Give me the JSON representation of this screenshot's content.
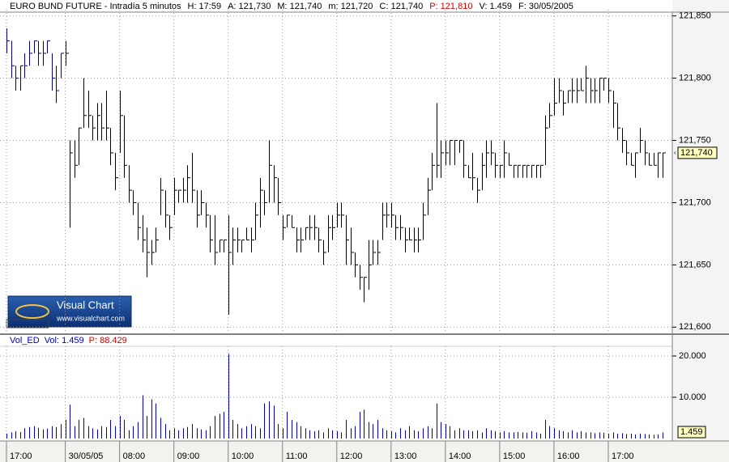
{
  "header": {
    "title": "EURO BUND FUTURE - Intradía 5 minutos",
    "fields": [
      "H: 17:59",
      "A: 121,730",
      "M: 121,740",
      "m: 121,720",
      "C: 121,740",
      "P: 121,810",
      "V: 1.459",
      "F: 30/05/2005"
    ]
  },
  "logo": {
    "title": "Visual Chart",
    "url": "www.visualchart.com"
  },
  "chart_data": [
    {
      "type": "hlc",
      "colors": {
        "previous": "#00008b",
        "current": "#000000"
      },
      "grid": true,
      "ylim": [
        121.595,
        121.855
      ],
      "yticks": [
        {
          "value": 121.6,
          "label": "121,600"
        },
        {
          "value": 121.65,
          "label": "121,650"
        },
        {
          "value": 121.7,
          "label": "121,700"
        },
        {
          "value": 121.75,
          "label": "121,750"
        },
        {
          "value": 121.8,
          "label": "121,800"
        },
        {
          "value": 121.85,
          "label": "121,850"
        }
      ],
      "last_value_label": "121,740",
      "high": [
        121.84,
        121.83,
        121.81,
        121.81,
        121.82,
        121.83,
        121.83,
        121.83,
        121.83,
        121.83,
        121.82,
        121.81,
        121.82,
        121.83,
        121.75,
        121.75,
        121.76,
        121.8,
        121.79,
        121.77,
        121.78,
        121.78,
        121.79,
        121.76,
        121.74,
        121.79,
        121.77,
        121.73,
        121.71,
        121.7,
        121.69,
        121.68,
        121.67,
        121.68,
        121.72,
        121.71,
        121.69,
        121.72,
        121.71,
        121.72,
        121.73,
        121.74,
        121.71,
        121.71,
        121.7,
        121.69,
        121.69,
        121.67,
        121.67,
        121.69,
        121.68,
        121.68,
        121.67,
        121.68,
        121.68,
        121.7,
        121.72,
        121.71,
        121.75,
        121.73,
        121.72,
        121.69,
        121.69,
        121.69,
        121.68,
        121.68,
        121.68,
        121.69,
        121.69,
        121.68,
        121.67,
        121.69,
        121.69,
        121.7,
        121.7,
        121.69,
        121.68,
        121.66,
        121.65,
        121.64,
        121.67,
        121.67,
        121.67,
        121.7,
        121.7,
        121.7,
        121.69,
        121.69,
        121.68,
        121.68,
        121.68,
        121.68,
        121.7,
        121.72,
        121.74,
        121.78,
        121.75,
        121.75,
        121.75,
        121.75,
        121.75,
        121.75,
        121.73,
        121.74,
        121.72,
        121.74,
        121.75,
        121.75,
        121.74,
        121.73,
        121.75,
        121.74,
        121.73,
        121.73,
        121.73,
        121.73,
        121.73,
        121.73,
        121.73,
        121.77,
        121.78,
        121.8,
        121.8,
        121.79,
        121.79,
        121.8,
        121.8,
        121.8,
        121.81,
        121.8,
        121.8,
        121.8,
        121.8,
        121.8,
        121.79,
        121.78,
        121.76,
        121.75,
        121.74,
        121.74,
        121.76,
        121.75,
        121.74,
        121.74,
        121.74,
        121.74
      ],
      "low": [
        121.82,
        121.8,
        121.79,
        121.79,
        121.8,
        121.81,
        121.82,
        121.81,
        121.81,
        121.82,
        121.79,
        121.78,
        121.8,
        121.81,
        121.68,
        121.72,
        121.73,
        121.76,
        121.76,
        121.75,
        121.75,
        121.75,
        121.75,
        121.73,
        121.71,
        121.74,
        121.72,
        121.7,
        121.69,
        121.67,
        121.66,
        121.64,
        121.65,
        121.66,
        121.69,
        121.68,
        121.67,
        121.69,
        121.7,
        121.7,
        121.7,
        121.7,
        121.68,
        121.69,
        121.68,
        121.66,
        121.65,
        121.66,
        121.66,
        121.61,
        121.65,
        121.66,
        121.66,
        121.67,
        121.66,
        121.67,
        121.68,
        121.69,
        121.7,
        121.7,
        121.69,
        121.67,
        121.68,
        121.68,
        121.66,
        121.66,
        121.67,
        121.67,
        121.67,
        121.66,
        121.65,
        121.66,
        121.67,
        121.68,
        121.68,
        121.65,
        121.65,
        121.64,
        121.63,
        121.62,
        121.63,
        121.65,
        121.65,
        121.67,
        121.68,
        121.68,
        121.67,
        121.67,
        121.66,
        121.67,
        121.66,
        121.66,
        121.67,
        121.69,
        121.71,
        121.72,
        121.72,
        121.73,
        121.73,
        121.73,
        121.74,
        121.72,
        121.72,
        121.71,
        121.7,
        121.71,
        121.72,
        121.73,
        121.72,
        121.72,
        121.72,
        121.73,
        121.72,
        121.72,
        121.72,
        121.72,
        121.72,
        121.72,
        121.72,
        121.73,
        121.76,
        121.77,
        121.78,
        121.77,
        121.78,
        121.78,
        121.78,
        121.79,
        121.78,
        121.78,
        121.78,
        121.78,
        121.79,
        121.78,
        121.76,
        121.75,
        121.74,
        121.73,
        121.73,
        121.72,
        121.74,
        121.73,
        121.73,
        121.73,
        121.72,
        121.72
      ],
      "close": [
        121.83,
        121.81,
        121.8,
        121.81,
        121.81,
        121.82,
        121.83,
        121.82,
        121.82,
        121.83,
        121.8,
        121.79,
        121.82,
        121.82,
        121.74,
        121.73,
        121.76,
        121.77,
        121.77,
        121.76,
        121.77,
        121.76,
        121.76,
        121.74,
        121.72,
        121.77,
        121.73,
        121.71,
        121.7,
        121.68,
        121.67,
        121.66,
        121.66,
        121.67,
        121.71,
        121.69,
        121.68,
        121.71,
        121.71,
        121.71,
        121.72,
        121.71,
        121.69,
        121.7,
        121.69,
        121.67,
        121.66,
        121.67,
        121.67,
        121.66,
        121.67,
        121.67,
        121.67,
        121.67,
        121.67,
        121.69,
        121.71,
        121.7,
        121.73,
        121.72,
        121.7,
        121.68,
        121.69,
        121.68,
        121.67,
        121.67,
        121.68,
        121.68,
        121.68,
        121.67,
        121.66,
        121.68,
        121.68,
        121.69,
        121.69,
        121.67,
        121.66,
        121.65,
        121.64,
        121.64,
        121.65,
        121.66,
        121.66,
        121.69,
        121.69,
        121.69,
        121.68,
        121.68,
        121.67,
        121.67,
        121.67,
        121.67,
        121.69,
        121.71,
        121.73,
        121.73,
        121.74,
        121.74,
        121.75,
        121.75,
        121.75,
        121.73,
        121.72,
        121.72,
        121.71,
        121.73,
        121.74,
        121.74,
        121.73,
        121.73,
        121.74,
        121.73,
        121.73,
        121.73,
        121.73,
        121.73,
        121.73,
        121.73,
        121.73,
        121.76,
        121.77,
        121.78,
        121.79,
        121.78,
        121.79,
        121.79,
        121.79,
        121.79,
        121.8,
        121.79,
        121.79,
        121.8,
        121.8,
        121.79,
        121.78,
        121.76,
        121.75,
        121.74,
        121.73,
        121.74,
        121.75,
        121.74,
        121.73,
        121.73,
        121.74,
        121.74
      ]
    },
    {
      "type": "bar",
      "title": "Vol_ED",
      "fields": [
        "Vol: 1.459",
        "P: 88.429"
      ],
      "color": "#0000cc",
      "grid": true,
      "ylim": [
        0,
        22350
      ],
      "yticks": [
        {
          "value": 10000,
          "label": "10.000"
        },
        {
          "value": 20000,
          "label": "20.000"
        }
      ],
      "last_value_label": "1.459",
      "categories": [
        "17:00",
        null,
        null,
        null,
        null,
        null,
        null,
        null,
        null,
        null,
        null,
        null,
        null,
        "30/05/05",
        null,
        null,
        null,
        null,
        null,
        null,
        null,
        null,
        null,
        null,
        null,
        "08:00",
        null,
        null,
        null,
        null,
        null,
        null,
        null,
        null,
        null,
        null,
        null,
        "09:00",
        null,
        null,
        null,
        null,
        null,
        null,
        null,
        null,
        null,
        null,
        null,
        "10:00",
        null,
        null,
        null,
        null,
        null,
        null,
        null,
        null,
        null,
        null,
        null,
        "11:00",
        null,
        null,
        null,
        null,
        null,
        null,
        null,
        null,
        null,
        null,
        null,
        "12:00",
        null,
        null,
        null,
        null,
        null,
        null,
        null,
        null,
        null,
        null,
        null,
        "13:00",
        null,
        null,
        null,
        null,
        null,
        null,
        null,
        null,
        null,
        null,
        null,
        "14:00",
        null,
        null,
        null,
        null,
        null,
        null,
        null,
        null,
        null,
        null,
        null,
        "15:00",
        null,
        null,
        null,
        null,
        null,
        null,
        null,
        null,
        null,
        null,
        null,
        "16:00",
        null,
        null,
        null,
        null,
        null,
        null,
        null,
        null,
        null,
        null,
        null,
        "17:00",
        null,
        null,
        null,
        null,
        null,
        null,
        null,
        null,
        null,
        null,
        null,
        null
      ],
      "values": [
        1200,
        1500,
        1800,
        1600,
        2500,
        2800,
        3000,
        2600,
        2200,
        2400,
        3000,
        2800,
        3500,
        4500,
        8200,
        3000,
        4500,
        5000,
        3000,
        2500,
        2200,
        3000,
        2800,
        4500,
        3000,
        5500,
        4500,
        2000,
        3000,
        4000,
        10500,
        5500,
        9500,
        8500,
        5000,
        3500,
        2000,
        2500,
        2000,
        2500,
        2800,
        3500,
        2500,
        2200,
        2000,
        3000,
        5500,
        6000,
        6500,
        20500,
        4500,
        3500,
        2500,
        3000,
        3500,
        3000,
        2500,
        8500,
        9000,
        8000,
        3500,
        2500,
        6500,
        4500,
        4000,
        3000,
        2500,
        2000,
        1800,
        2000,
        1500,
        2500,
        2000,
        1800,
        1500,
        4500,
        2500,
        3000,
        6500,
        7000,
        4000,
        3500,
        4500,
        2500,
        2000,
        1800,
        1500,
        2500,
        2000,
        3000,
        2000,
        1800,
        2500,
        3000,
        2500,
        8500,
        4000,
        3500,
        3000,
        2000,
        2500,
        2000,
        2000,
        1800,
        2000,
        1500,
        2500,
        2000,
        1800,
        1500,
        1800,
        1500,
        1500,
        1600,
        1500,
        1400,
        1800,
        1500,
        1200,
        4500,
        3000,
        2500,
        2000,
        1800,
        1500,
        2000,
        1500,
        1800,
        1500,
        1500,
        1300,
        1500,
        1400,
        1200,
        1500,
        1200,
        1300,
        1100,
        1200,
        1000,
        1200,
        1100,
        1000,
        900,
        1000,
        1459
      ]
    }
  ]
}
